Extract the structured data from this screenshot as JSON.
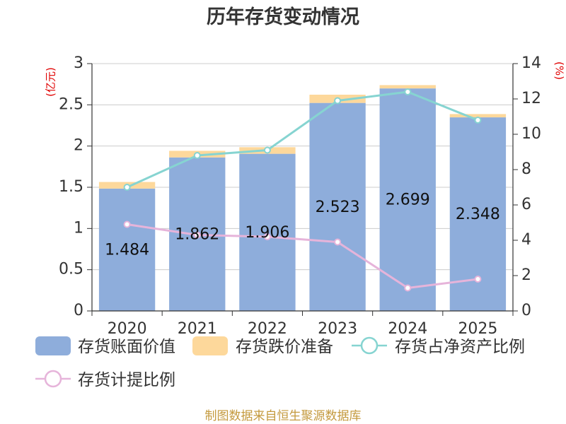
{
  "chart_data": {
    "type": "bar",
    "title": "历年存货变动情况",
    "categories": [
      "2020",
      "2021",
      "2022",
      "2023",
      "2024",
      "2025"
    ],
    "ylabel": "(亿元)",
    "ylabel_right": "(%)",
    "ylim": [
      0,
      3
    ],
    "ylim_right": [
      0,
      14
    ],
    "yticks": [
      0,
      0.5,
      1,
      1.5,
      2,
      2.5,
      3
    ],
    "yticks_right": [
      0,
      2,
      4,
      6,
      8,
      10,
      12,
      14
    ],
    "grid": true,
    "legend": "bottom-left",
    "series": [
      {
        "name": "存货账面价值",
        "type": "bar",
        "axis": "left",
        "stacked": true,
        "color": "#8eaddb",
        "data_labels": true,
        "values": [
          1.484,
          1.862,
          1.906,
          2.523,
          2.699,
          2.348
        ]
      },
      {
        "name": "存货跌价准备",
        "type": "bar",
        "axis": "left",
        "stacked": true,
        "color": "#fdd89b",
        "values": [
          0.08,
          0.08,
          0.08,
          0.1,
          0.04,
          0.04
        ]
      },
      {
        "name": "存货占净资产比例",
        "type": "line",
        "axis": "right",
        "color": "#86d4d1",
        "values": [
          7.0,
          8.8,
          9.1,
          11.9,
          12.4,
          10.8
        ]
      },
      {
        "name": "存货计提比例",
        "type": "line",
        "axis": "right",
        "color": "#e6b4da",
        "values": [
          4.9,
          4.3,
          4.2,
          3.9,
          1.3,
          1.8
        ]
      }
    ]
  },
  "footer": "制图数据来自恒生聚源数据库"
}
